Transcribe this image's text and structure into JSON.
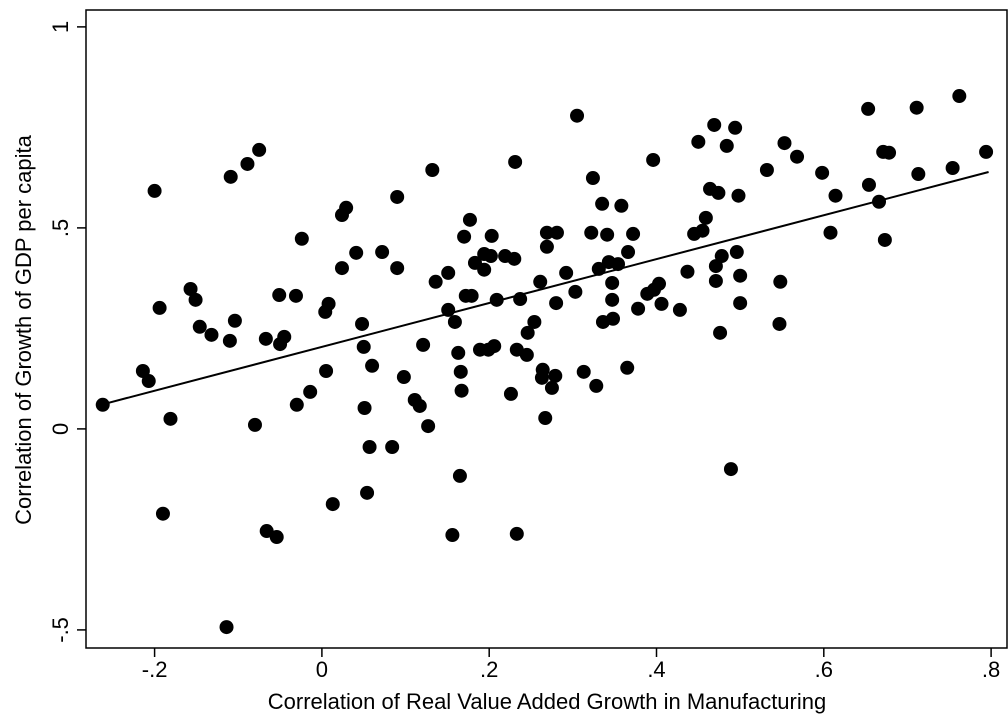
{
  "chart_data": {
    "type": "scatter",
    "x_label": "Correlation of Real Value Added Growth in Manufacturing",
    "y_label": "Correlation of Growth of GDP per capita",
    "color": "#000000",
    "xlim": [
      -0.282,
      0.819
    ],
    "ylim": [
      -0.545,
      1.042
    ],
    "xticks": [
      {
        "value": -0.2,
        "label": "-.2"
      },
      0,
      {
        "value": 0.2,
        "label": ".2"
      },
      {
        "value": 0.4,
        "label": ".4"
      },
      {
        "value": 0.6,
        "label": ".6"
      },
      {
        "value": 0.8,
        "label": ".8"
      }
    ],
    "yticks": [
      {
        "value": -0.5,
        "label": "-.5"
      },
      0,
      {
        "value": 0.5,
        "label": ".5"
      },
      1
    ],
    "x": [
      -0.262,
      -0.214,
      -0.207,
      -0.2,
      -0.194,
      -0.19,
      -0.181,
      -0.157,
      -0.151,
      -0.146,
      -0.132,
      -0.109,
      -0.104,
      -0.11,
      -0.114,
      -0.089,
      -0.075,
      -0.08,
      -0.067,
      -0.066,
      -0.054,
      -0.05,
      -0.051,
      -0.045,
      -0.031,
      -0.03,
      -0.024,
      -0.014,
      0.008,
      0.004,
      0.005,
      0.013,
      0.024,
      0.029,
      0.024,
      0.041,
      0.048,
      0.05,
      0.051,
      0.054,
      0.057,
      0.06,
      0.072,
      0.084,
      0.09,
      0.09,
      0.098,
      0.111,
      0.117,
      0.121,
      0.127,
      0.132,
      0.136,
      0.151,
      0.151,
      0.156,
      0.159,
      0.163,
      0.165,
      0.166,
      0.167,
      0.17,
      0.172,
      0.177,
      0.179,
      0.183,
      0.189,
      0.194,
      0.194,
      0.199,
      0.202,
      0.203,
      0.206,
      0.209,
      0.219,
      0.226,
      0.231,
      0.23,
      0.233,
      0.233,
      0.237,
      0.245,
      0.246,
      0.254,
      0.261,
      0.263,
      0.264,
      0.267,
      0.269,
      0.269,
      0.275,
      0.279,
      0.28,
      0.281,
      0.292,
      0.303,
      0.305,
      0.313,
      0.322,
      0.324,
      0.328,
      0.331,
      0.335,
      0.336,
      0.341,
      0.343,
      0.347,
      0.347,
      0.348,
      0.354,
      0.358,
      0.365,
      0.366,
      0.372,
      0.378,
      0.389,
      0.396,
      0.397,
      0.403,
      0.406,
      0.428,
      0.437,
      0.445,
      0.45,
      0.455,
      0.459,
      0.464,
      0.469,
      0.471,
      0.471,
      0.474,
      0.476,
      0.478,
      0.484,
      0.489,
      0.494,
      0.498,
      0.496,
      0.5,
      0.5,
      0.532,
      0.553,
      0.568,
      0.548,
      0.547,
      0.598,
      0.608,
      0.614,
      0.653,
      0.654,
      0.666,
      0.671,
      0.673,
      0.678,
      0.711,
      0.713,
      0.754,
      0.762,
      0.794
    ],
    "values": [
      0.06,
      0.144,
      0.119,
      0.592,
      0.301,
      -0.211,
      0.025,
      0.348,
      0.321,
      0.254,
      0.234,
      0.627,
      0.269,
      0.219,
      -0.493,
      0.659,
      0.694,
      0.01,
      0.224,
      -0.254,
      -0.269,
      0.211,
      0.333,
      0.229,
      0.331,
      0.06,
      0.473,
      0.092,
      0.311,
      0.291,
      0.144,
      -0.187,
      0.532,
      0.55,
      0.4,
      0.438,
      0.261,
      0.204,
      0.052,
      -0.159,
      -0.045,
      0.157,
      0.44,
      -0.045,
      0.577,
      0.4,
      0.129,
      0.072,
      0.057,
      0.209,
      0.007,
      0.644,
      0.366,
      0.388,
      0.296,
      -0.264,
      0.266,
      0.189,
      -0.117,
      0.142,
      0.095,
      0.478,
      0.331,
      0.52,
      0.331,
      0.413,
      0.197,
      0.435,
      0.396,
      0.197,
      0.43,
      0.48,
      0.206,
      0.321,
      0.43,
      0.087,
      0.664,
      0.423,
      0.197,
      -0.261,
      0.323,
      0.184,
      0.239,
      0.266,
      0.366,
      0.127,
      0.147,
      0.027,
      0.453,
      0.488,
      0.102,
      0.132,
      0.313,
      0.488,
      0.388,
      0.341,
      0.779,
      0.142,
      0.488,
      0.624,
      0.107,
      0.398,
      0.56,
      0.266,
      0.483,
      0.415,
      0.363,
      0.321,
      0.274,
      0.41,
      0.555,
      0.152,
      0.44,
      0.485,
      0.299,
      0.336,
      0.669,
      0.346,
      0.361,
      0.311,
      0.296,
      0.391,
      0.485,
      0.714,
      0.493,
      0.525,
      0.597,
      0.756,
      0.368,
      0.405,
      0.587,
      0.239,
      0.43,
      0.704,
      -0.1,
      0.749,
      0.58,
      0.44,
      0.381,
      0.313,
      0.644,
      0.711,
      0.677,
      0.366,
      0.261,
      0.637,
      0.488,
      0.58,
      0.796,
      0.607,
      0.565,
      0.689,
      0.47,
      0.687,
      0.799,
      0.634,
      0.649,
      0.828,
      0.689
    ],
    "fit": {
      "x": [
        -0.264,
        0.797
      ],
      "values": [
        0.06,
        0.639
      ]
    }
  }
}
